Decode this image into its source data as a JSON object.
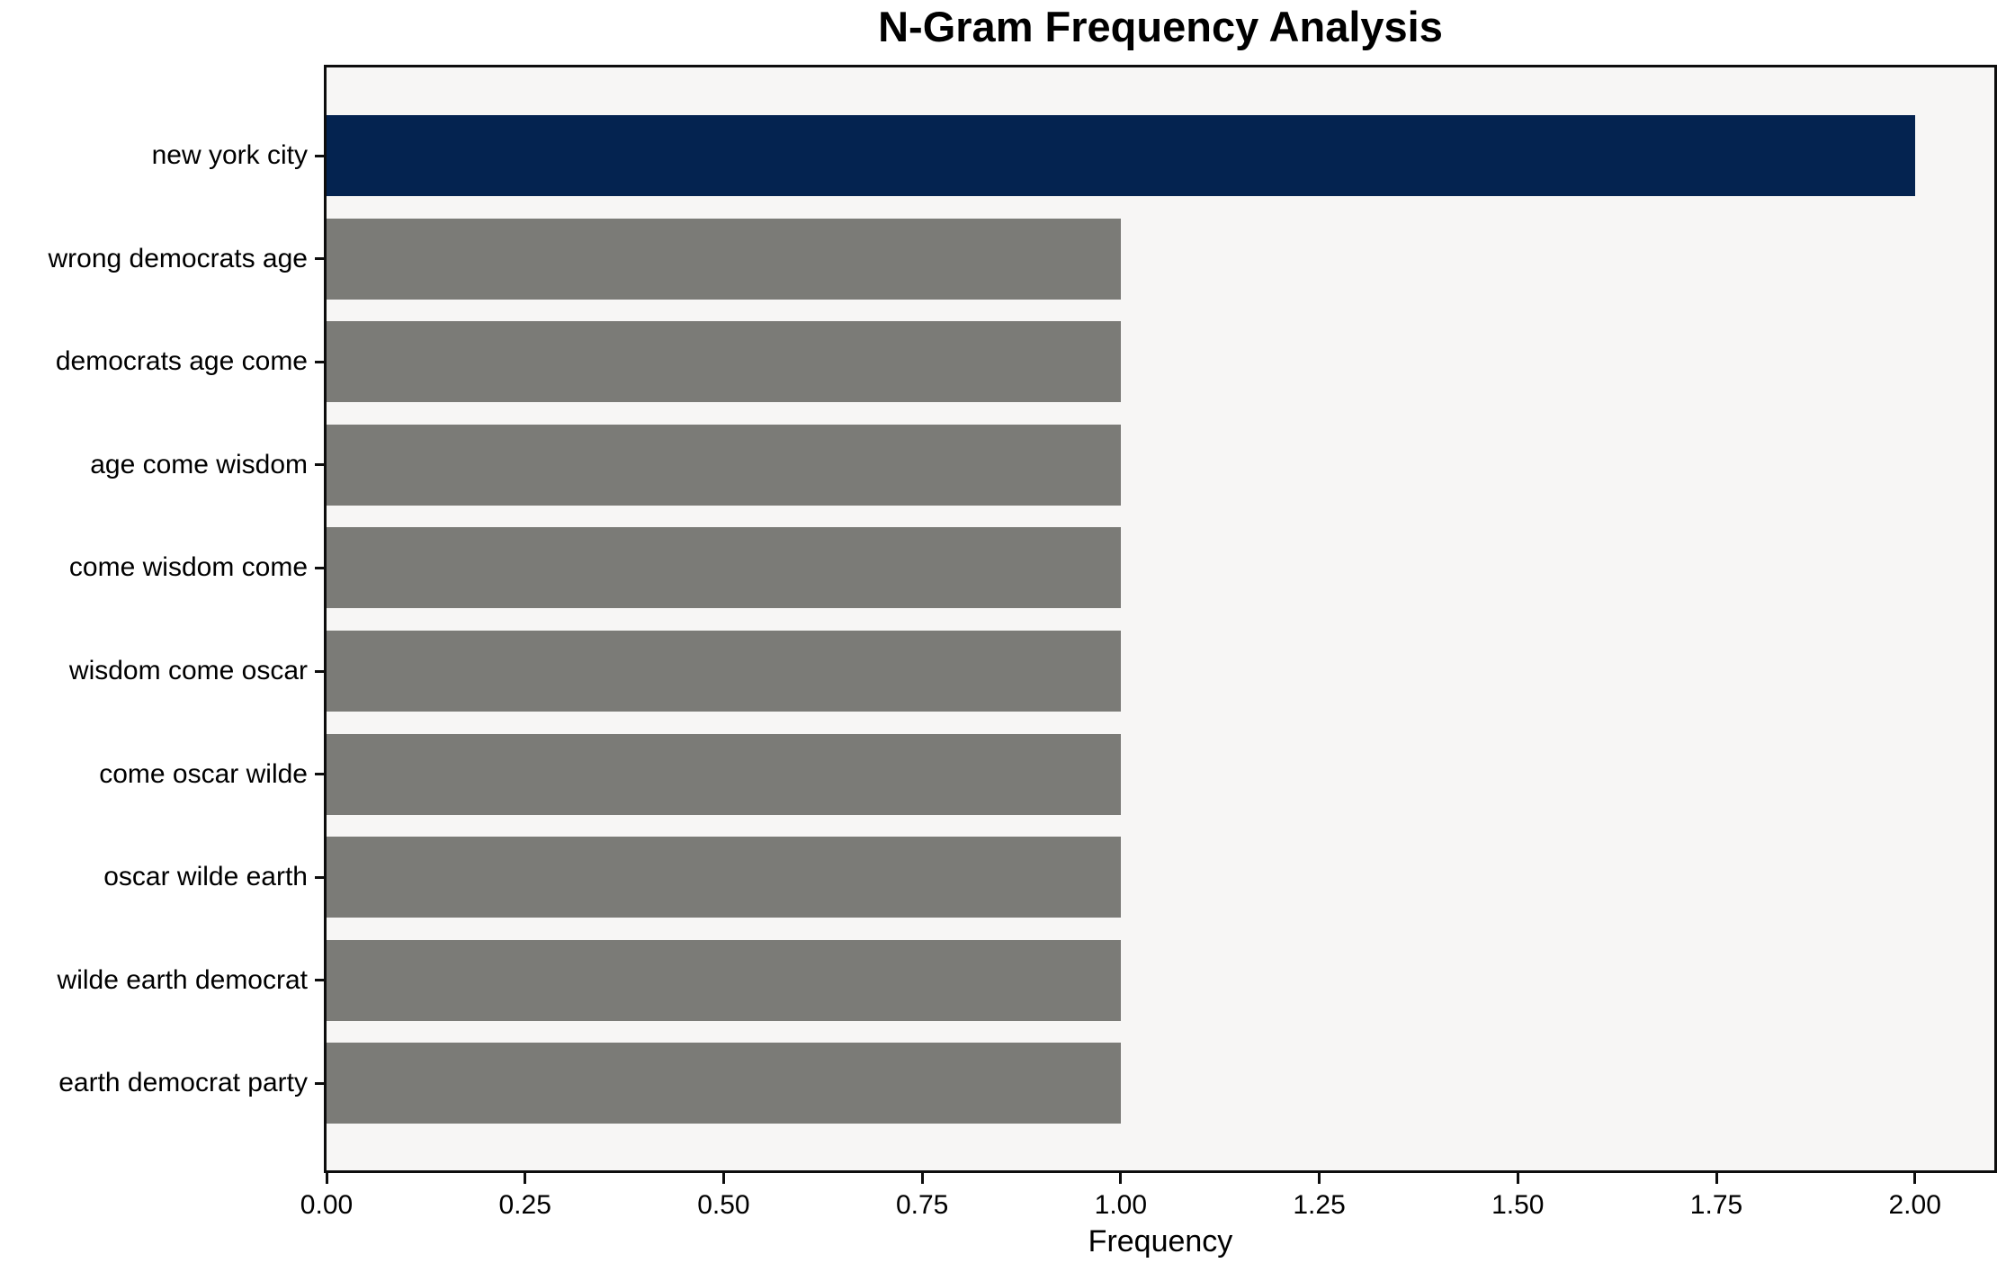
{
  "chart_data": {
    "type": "bar",
    "orientation": "horizontal",
    "title": "N-Gram Frequency Analysis",
    "xlabel": "Frequency",
    "ylabel": "",
    "categories": [
      "new york city",
      "wrong democrats age",
      "democrats age come",
      "age come wisdom",
      "come wisdom come",
      "wisdom come oscar",
      "come oscar wilde",
      "oscar wilde earth",
      "wilde earth democrat",
      "earth democrat party"
    ],
    "values": [
      2,
      1,
      1,
      1,
      1,
      1,
      1,
      1,
      1,
      1
    ],
    "highlight_index": 0,
    "xlim": [
      0,
      2.1
    ],
    "xticks": [
      0,
      0.25,
      0.5,
      0.75,
      1,
      1.25,
      1.5,
      1.75,
      2
    ],
    "xtick_labels": [
      "0.00",
      "0.25",
      "0.50",
      "0.75",
      "1.00",
      "1.25",
      "1.50",
      "1.75",
      "2.00"
    ],
    "grid": false,
    "legend": "none",
    "colors": {
      "bar_highlight": "#042350",
      "bar_default": "#7b7b77",
      "plot_background": "#f7f6f5",
      "figure_background": "#ffffff",
      "axis": "#0d0d0d",
      "text": "#000000"
    }
  }
}
